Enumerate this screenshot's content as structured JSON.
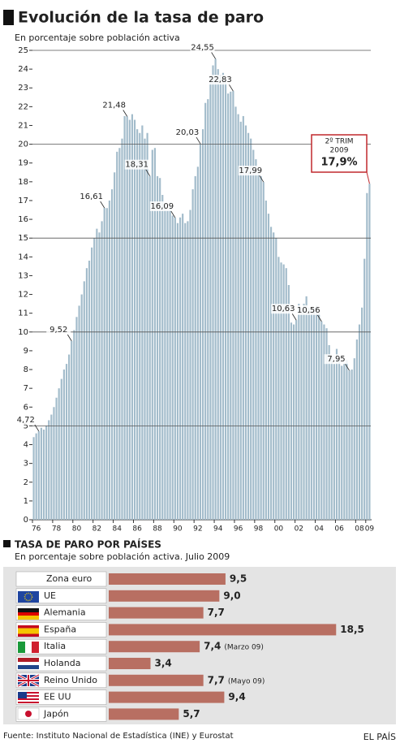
{
  "chart_data": [
    {
      "type": "bar",
      "title": "Evolución de la tasa de paro",
      "subtitle": "En porcentaje sobre población activa",
      "categories": [
        "76",
        null,
        null,
        null,
        null,
        null,
        null,
        null,
        "78",
        null,
        null,
        null,
        null,
        null,
        null,
        null,
        "80",
        null,
        null,
        null,
        null,
        null,
        null,
        null,
        "82",
        null,
        null,
        null,
        null,
        null,
        null,
        null,
        "84",
        null,
        null,
        null,
        null,
        null,
        null,
        null,
        "86",
        null,
        null,
        null,
        null,
        null,
        null,
        null,
        "88",
        null,
        null,
        null,
        null,
        null,
        null,
        null,
        "90",
        null,
        null,
        null,
        null,
        null,
        null,
        null,
        "92",
        null,
        null,
        null,
        null,
        null,
        null,
        null,
        "94",
        null,
        null,
        null,
        null,
        null,
        null,
        null,
        "96",
        null,
        null,
        null,
        null,
        null,
        null,
        null,
        "98",
        null,
        null,
        null,
        null,
        null,
        null,
        null,
        "00",
        null,
        null,
        null,
        null,
        null,
        null,
        null,
        "02",
        null,
        null,
        null,
        null,
        null,
        null,
        null,
        "04",
        null,
        null,
        null,
        null,
        null,
        null,
        null,
        "06",
        null,
        null,
        null,
        null,
        null,
        null,
        null,
        "08",
        null,
        null,
        null,
        "09",
        null
      ],
      "values": [
        4.4,
        4.6,
        4.72,
        4.9,
        4.8,
        5.0,
        5.3,
        5.6,
        6.0,
        6.5,
        7.0,
        7.5,
        8.0,
        8.3,
        8.8,
        9.52,
        10.1,
        10.8,
        11.4,
        12.0,
        12.7,
        13.4,
        13.8,
        14.5,
        15.0,
        15.5,
        15.3,
        15.9,
        16.61,
        16.6,
        17.0,
        17.6,
        18.5,
        19.6,
        19.8,
        20.3,
        21.5,
        21.48,
        21.3,
        21.6,
        21.3,
        20.8,
        20.6,
        21.0,
        20.3,
        20.6,
        18.31,
        19.7,
        19.8,
        18.3,
        18.2,
        17.3,
        16.8,
        16.5,
        16.9,
        16.2,
        16.09,
        15.8,
        16.1,
        16.3,
        15.8,
        15.9,
        16.5,
        17.6,
        18.3,
        18.8,
        20.03,
        20.8,
        22.2,
        22.4,
        23.6,
        24.2,
        24.55,
        24.0,
        23.7,
        23.8,
        23.5,
        22.7,
        22.8,
        22.83,
        22.0,
        21.6,
        21.2,
        21.5,
        21.0,
        20.6,
        20.3,
        19.7,
        19.2,
        18.7,
        18.3,
        17.99,
        17.0,
        16.3,
        15.6,
        15.3,
        15.0,
        14.0,
        13.7,
        13.6,
        13.4,
        12.5,
        10.5,
        10.4,
        10.63,
        11.5,
        11.3,
        11.5,
        11.9,
        11.3,
        11.2,
        11.3,
        11.4,
        11.0,
        10.56,
        10.4,
        10.2,
        9.3,
        8.7,
        8.3,
        9.1,
        8.5,
        8.2,
        8.3,
        8.5,
        7.95,
        8.0,
        8.6,
        9.6,
        10.4,
        11.3,
        13.9,
        17.4,
        17.9
      ],
      "value_labels": [
        null,
        null,
        "4,72",
        null,
        null,
        null,
        null,
        null,
        null,
        null,
        null,
        null,
        null,
        null,
        null,
        "9,52",
        null,
        null,
        null,
        null,
        null,
        null,
        null,
        null,
        null,
        null,
        null,
        null,
        "16,61",
        null,
        null,
        null,
        null,
        null,
        null,
        null,
        null,
        "21,48",
        null,
        null,
        null,
        null,
        null,
        null,
        null,
        null,
        "18,31",
        null,
        null,
        null,
        null,
        null,
        null,
        null,
        null,
        null,
        "16,09",
        null,
        null,
        null,
        null,
        null,
        null,
        null,
        null,
        null,
        "20,03",
        null,
        null,
        null,
        null,
        null,
        "24,55",
        null,
        null,
        null,
        null,
        null,
        null,
        "22,83",
        null,
        null,
        null,
        null,
        null,
        null,
        null,
        null,
        null,
        null,
        null,
        "17,99",
        null,
        null,
        null,
        null,
        null,
        null,
        null,
        null,
        null,
        null,
        null,
        null,
        "10,63",
        null,
        null,
        null,
        null,
        null,
        null,
        null,
        null,
        null,
        "10,56",
        null,
        null,
        null,
        null,
        null,
        null,
        null,
        null,
        null,
        null,
        "7,95",
        null,
        null,
        null,
        null,
        null,
        null,
        null,
        "17,9%"
      ],
      "callout": [
        "2º TRIM",
        "2009"
      ],
      "color": "#a3bccb",
      "ylim": [
        0,
        25
      ],
      "yticks": [
        0,
        1,
        2,
        3,
        4,
        5,
        6,
        7,
        8,
        9,
        10,
        11,
        12,
        13,
        14,
        15,
        16,
        17,
        18,
        19,
        20,
        21,
        22,
        23,
        24,
        25
      ],
      "grid_lines": [
        5,
        10,
        15,
        20,
        25
      ]
    },
    {
      "type": "barh",
      "title": "TASA DE PARO POR PAÍSES",
      "subtitle": "En porcentaje sobre población activa. Julio 2009",
      "categories": [
        "Zona euro",
        "UE",
        "Alemania",
        "España",
        "Italia",
        "Holanda",
        "Reino Unido",
        "EE UU",
        "Japón"
      ],
      "values": [
        9.5,
        9.0,
        7.7,
        18.5,
        7.4,
        3.4,
        7.7,
        9.4,
        5.7
      ],
      "value_labels": [
        "9,5",
        "9,0",
        "7,7",
        "18,5",
        "7,4",
        "3,4",
        "7,7",
        "9,4",
        "5,7"
      ],
      "notes": [
        null,
        null,
        null,
        null,
        "(Marzo 09)",
        null,
        "(Mayo 09)",
        null,
        null
      ],
      "color": "#b86f62"
    }
  ],
  "footer": {
    "source": "Fuente: Instituto Nacional de Estadística (INE) y Eurostat",
    "brand": "EL PAÍS"
  }
}
